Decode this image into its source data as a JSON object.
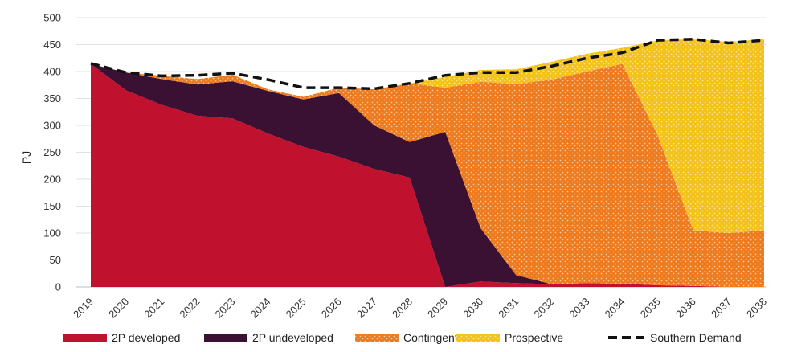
{
  "chart_data": {
    "type": "area",
    "title": "",
    "xlabel": "",
    "ylabel": "PJ",
    "ylim": [
      0,
      500
    ],
    "y_ticks": [
      0,
      50,
      100,
      150,
      200,
      250,
      300,
      350,
      400,
      450,
      500
    ],
    "grid": true,
    "legend_position": "bottom",
    "x": [
      "2019",
      "2020",
      "2021",
      "2022",
      "2023",
      "2024",
      "2025",
      "2026",
      "2027",
      "2028",
      "2029",
      "2030",
      "2031",
      "2032",
      "2033",
      "2034",
      "2035",
      "2036",
      "2037",
      "2038"
    ],
    "stacked": true,
    "series": [
      {
        "name": "2P developed",
        "color": "#c0122f",
        "values": [
          414,
          365,
          338,
          318,
          313,
          285,
          260,
          242,
          219,
          203,
          0,
          10,
          7,
          5,
          7,
          6,
          3,
          2,
          0,
          0
        ]
      },
      {
        "name": "2P undeveloped",
        "color": "#3a1033",
        "values": [
          0,
          33,
          48,
          58,
          69,
          79,
          88,
          118,
          81,
          66,
          288,
          99,
          15,
          0,
          0,
          0,
          0,
          0,
          0,
          0
        ]
      },
      {
        "name": "Contingent",
        "color": "#ee7a1e",
        "pattern": "dotted",
        "values": [
          0,
          0,
          6,
          10,
          12,
          3,
          5,
          10,
          67,
          109,
          82,
          272,
          355,
          380,
          393,
          408,
          278,
          103,
          100,
          105
        ]
      },
      {
        "name": "Prospective",
        "color": "#f3c21a",
        "pattern": "dotted",
        "values": [
          0,
          0,
          0,
          0,
          0,
          0,
          0,
          0,
          0,
          0,
          20,
          22,
          27,
          33,
          33,
          30,
          177,
          355,
          355,
          355
        ]
      }
    ],
    "demand_series": {
      "name": "Southern Demand",
      "color": "#111111",
      "style": "dashed",
      "values": [
        415,
        398,
        392,
        393,
        397,
        385,
        370,
        370,
        368,
        378,
        393,
        398,
        398,
        410,
        425,
        435,
        458,
        460,
        453,
        458
      ]
    }
  }
}
